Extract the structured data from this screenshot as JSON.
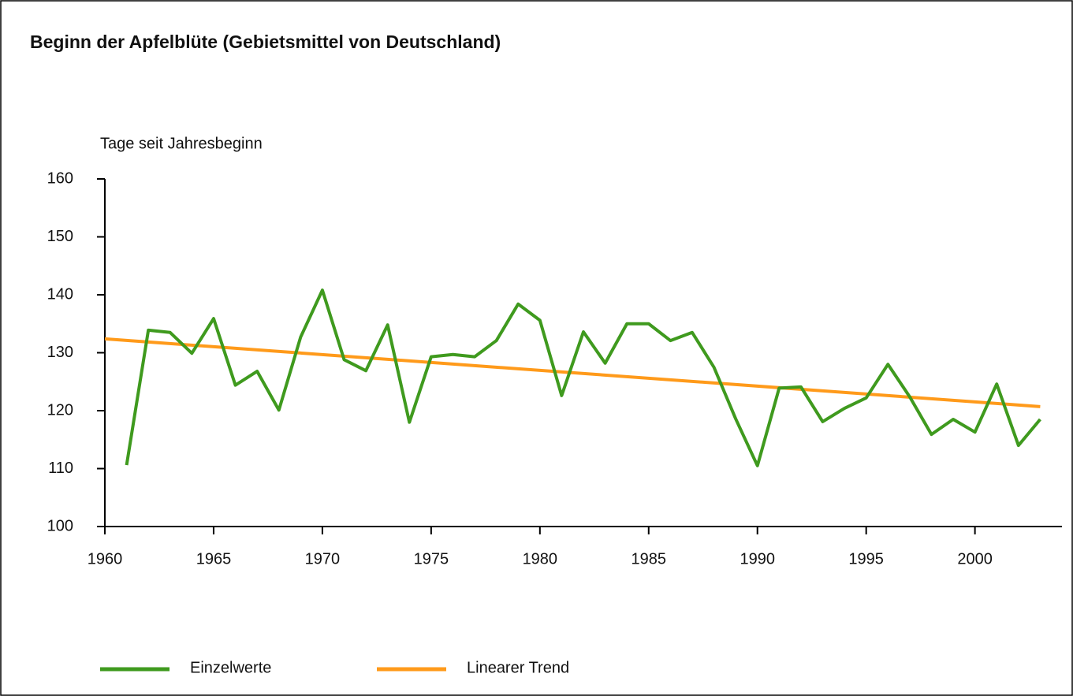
{
  "chart_data": {
    "type": "line",
    "title": "Beginn der Apfelblüte (Gebietsmittel von Deutschland)",
    "y_label": "Tage seit Jahresbeginn",
    "xlim": [
      1960,
      2004
    ],
    "xticks": [
      1960,
      1965,
      1970,
      1975,
      1980,
      1985,
      1990,
      1995,
      2000
    ],
    "ylim": [
      100,
      160
    ],
    "yticks": [
      100,
      110,
      120,
      130,
      140,
      150,
      160
    ],
    "grid": false,
    "legend": "bottom",
    "series": [
      {
        "name": "Einzelwerte",
        "color": "#3f9a1e",
        "x": [
          1961,
          1962,
          1963,
          1964,
          1965,
          1966,
          1967,
          1968,
          1969,
          1970,
          1971,
          1972,
          1973,
          1974,
          1975,
          1976,
          1977,
          1978,
          1979,
          1980,
          1981,
          1982,
          1983,
          1984,
          1985,
          1986,
          1987,
          1988,
          1989,
          1990,
          1991,
          1992,
          1993,
          1994,
          1995,
          1996,
          1997,
          1998,
          1999,
          2000,
          2001,
          2002,
          2003
        ],
        "values": [
          110.6,
          133.9,
          133.5,
          129.9,
          135.9,
          124.4,
          126.8,
          120.1,
          132.7,
          140.8,
          128.8,
          126.9,
          134.8,
          118.0,
          129.3,
          129.7,
          129.3,
          132.1,
          138.4,
          135.6,
          122.6,
          133.6,
          128.2,
          135.0,
          135.0,
          132.1,
          133.5,
          127.5,
          118.6,
          110.5,
          123.9,
          124.1,
          118.1,
          120.4,
          122.2,
          128.0,
          122.4,
          115.9,
          118.5,
          116.3,
          124.6,
          114.0,
          118.5
        ]
      },
      {
        "name": "Linearer Trend",
        "color": "#ff9a1a",
        "x": [
          1960,
          2003
        ],
        "values": [
          132.4,
          120.7
        ]
      }
    ]
  }
}
